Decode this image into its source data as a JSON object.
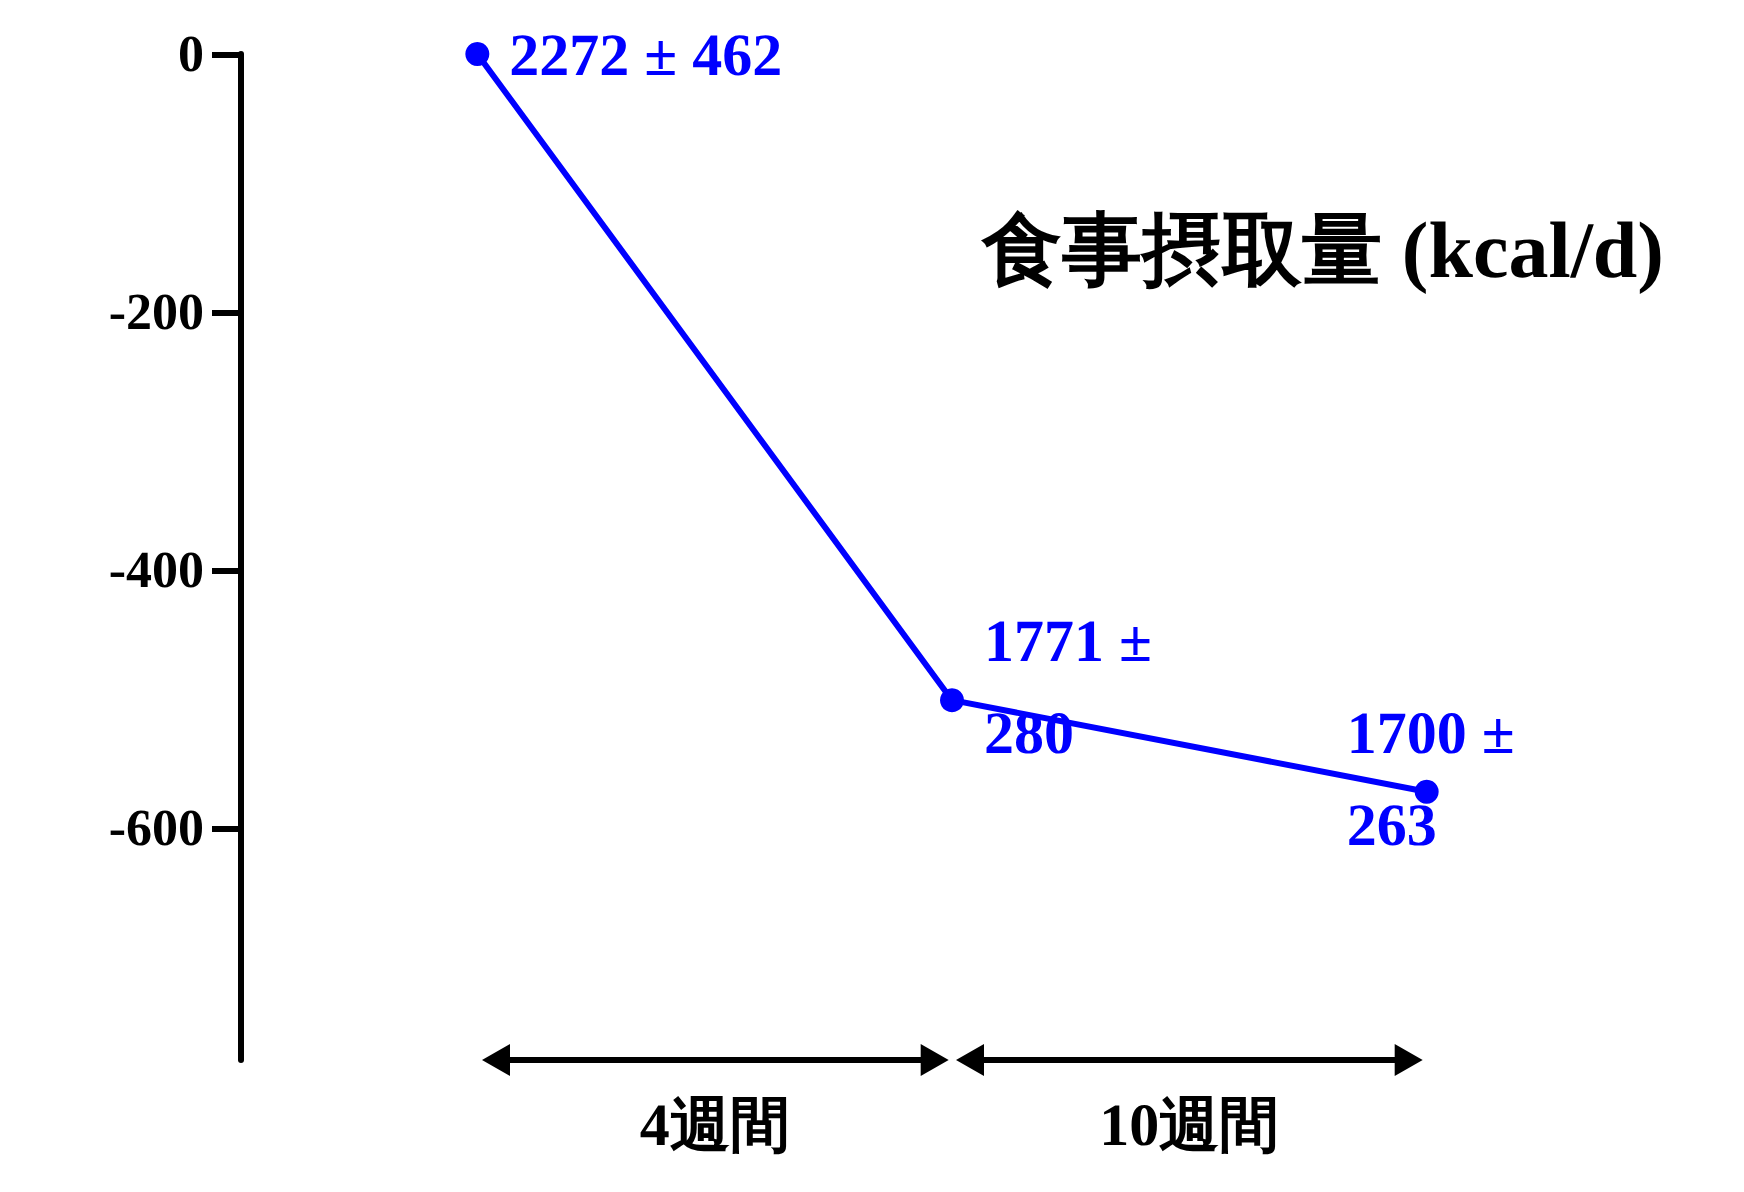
{
  "chart_data": {
    "type": "line",
    "categories": [
      null,
      null,
      null
    ],
    "values": [
      0,
      -501,
      -572
    ],
    "color": "#0000ff",
    "marker": "circle",
    "line_style": "solid",
    "ylim": [
      -780,
      0
    ],
    "yticks": [
      0,
      -200,
      -400,
      -600
    ],
    "tick_labels": "y",
    "grid": false,
    "annotations": [
      "食事摂取量 (kcal/d)",
      "2272 ± 462",
      "1771 ±\n280",
      "1700 ±\n263",
      "4週間",
      "10週間"
    ]
  }
}
